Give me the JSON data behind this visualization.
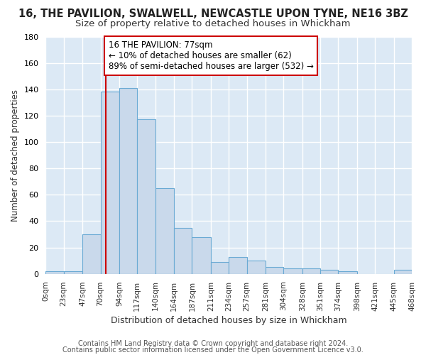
{
  "title1": "16, THE PAVILION, SWALWELL, NEWCASTLE UPON TYNE, NE16 3BZ",
  "title2": "Size of property relative to detached houses in Whickham",
  "xlabel": "Distribution of detached houses by size in Whickham",
  "ylabel": "Number of detached properties",
  "bar_edges": [
    0,
    23,
    47,
    70,
    94,
    117,
    140,
    164,
    187,
    211,
    234,
    257,
    281,
    304,
    328,
    351,
    374,
    398,
    421,
    445,
    468
  ],
  "bar_heights": [
    2,
    2,
    30,
    138,
    141,
    117,
    65,
    35,
    28,
    9,
    13,
    10,
    5,
    4,
    4,
    3,
    2,
    0,
    0,
    3
  ],
  "bar_color": "#c9d9eb",
  "bar_edge_color": "#6aaad4",
  "plot_background_color": "#dce9f5",
  "fig_background_color": "#ffffff",
  "grid_color": "#ffffff",
  "property_size": 77,
  "red_line_color": "#cc0000",
  "annotation_line1": "16 THE PAVILION: 77sqm",
  "annotation_line2": "← 10% of detached houses are smaller (62)",
  "annotation_line3": "89% of semi-detached houses are larger (532) →",
  "annotation_box_color": "#ffffff",
  "annotation_box_edge_color": "#cc0000",
  "annotation_fontsize": 8.5,
  "ylim": [
    0,
    180
  ],
  "yticks": [
    0,
    20,
    40,
    60,
    80,
    100,
    120,
    140,
    160,
    180
  ],
  "xtick_labels": [
    "0sqm",
    "23sqm",
    "47sqm",
    "70sqm",
    "94sqm",
    "117sqm",
    "140sqm",
    "164sqm",
    "187sqm",
    "211sqm",
    "234sqm",
    "257sqm",
    "281sqm",
    "304sqm",
    "328sqm",
    "351sqm",
    "374sqm",
    "398sqm",
    "421sqm",
    "445sqm",
    "468sqm"
  ],
  "footer1": "Contains HM Land Registry data © Crown copyright and database right 2024.",
  "footer2": "Contains public sector information licensed under the Open Government Licence v3.0.",
  "title1_fontsize": 10.5,
  "title2_fontsize": 9.5,
  "xlabel_fontsize": 9,
  "ylabel_fontsize": 8.5,
  "footer_fontsize": 7
}
